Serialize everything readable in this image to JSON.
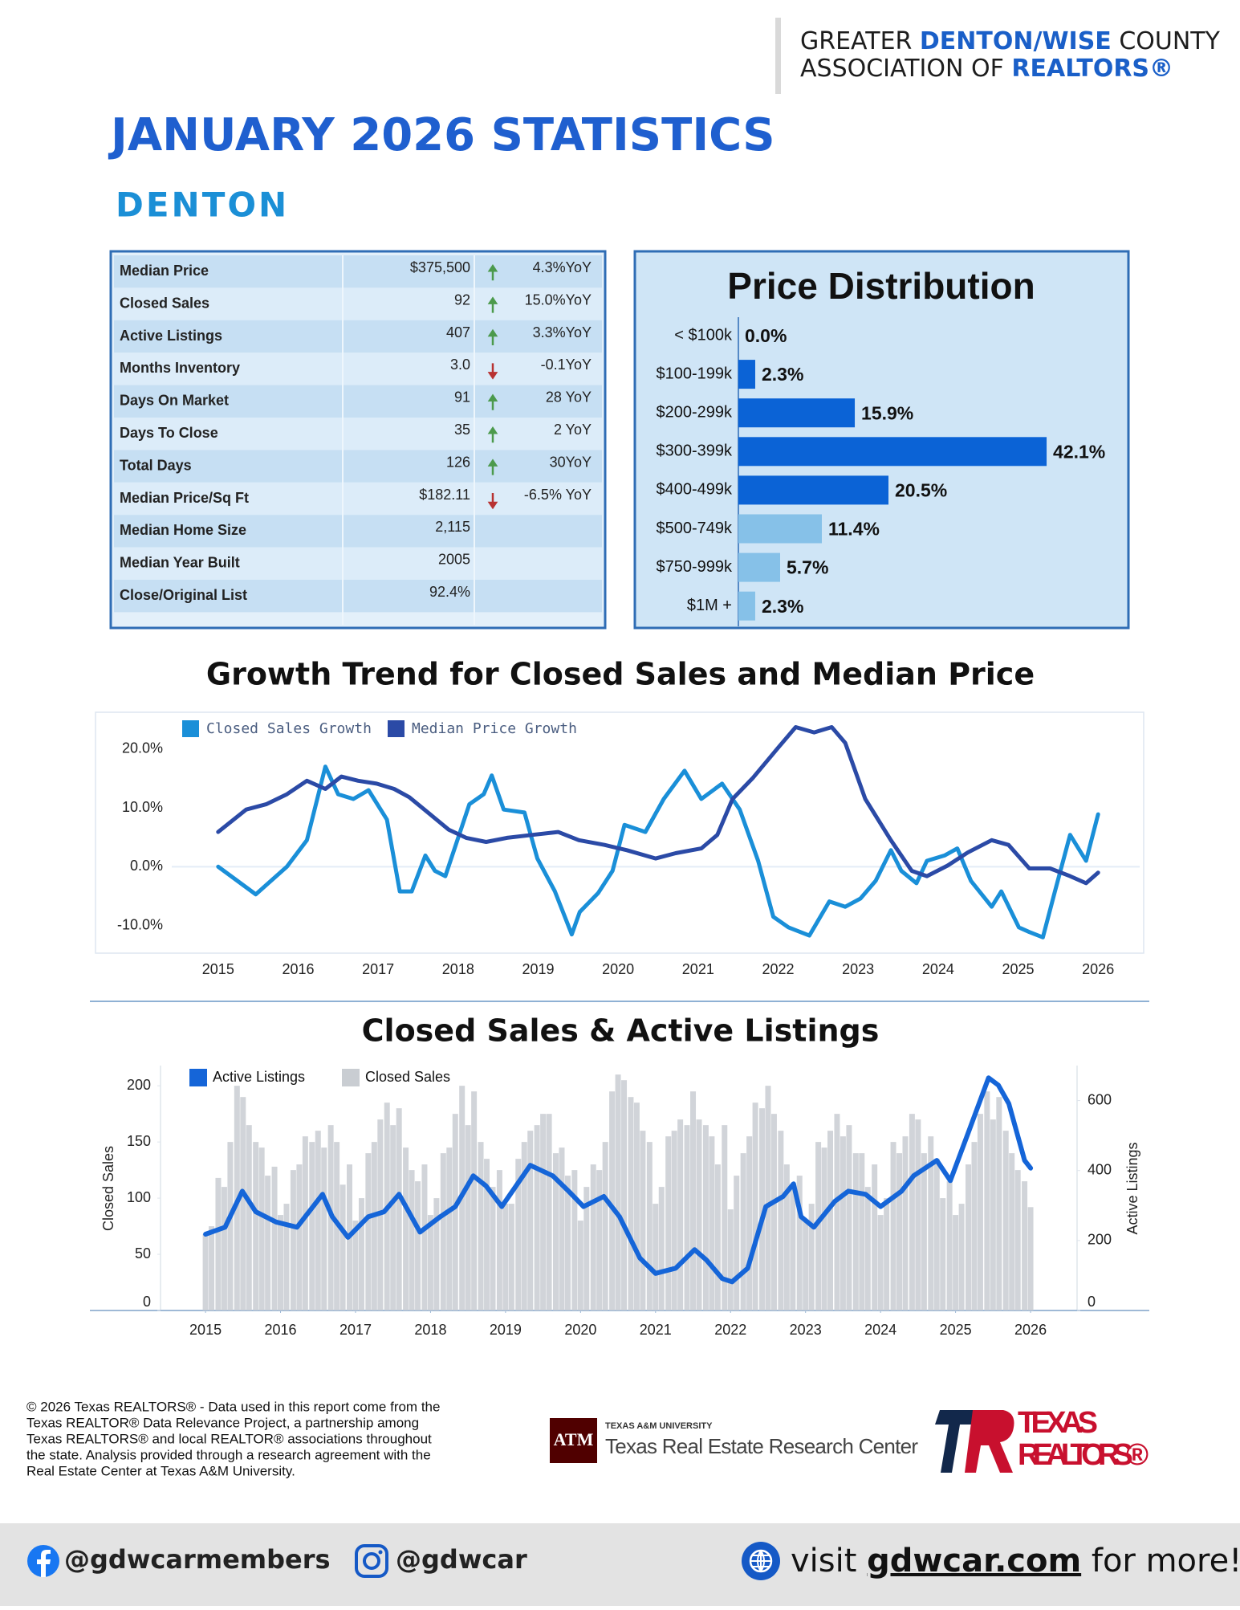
{
  "header": {
    "org_line1": [
      "GREATER ",
      "DENTON/WISE",
      " COUNTY"
    ],
    "org_line2": [
      "ASSOCIATION OF ",
      "REALTORS®"
    ]
  },
  "title": "JANUARY 2026 STATISTICS",
  "subtitle": "DENTON",
  "stats_table": {
    "rows": [
      {
        "label": "Median Price",
        "value": "$375,500",
        "trend": "up",
        "yoy": "4.3%YoY"
      },
      {
        "label": "Closed Sales",
        "value": "92",
        "trend": "up",
        "yoy": "15.0%YoY"
      },
      {
        "label": "Active Listings",
        "value": "407",
        "trend": "up",
        "yoy": "3.3%YoY"
      },
      {
        "label": "Months Inventory",
        "value": "3.0",
        "trend": "down",
        "yoy": "-0.1YoY"
      },
      {
        "label": "Days On Market",
        "value": "91",
        "trend": "up",
        "yoy": "28 YoY"
      },
      {
        "label": "Days To Close",
        "value": "35",
        "trend": "up",
        "yoy": "2 YoY"
      },
      {
        "label": "Total Days",
        "value": "126",
        "trend": "up",
        "yoy": "30YoY"
      },
      {
        "label": "Median Price/Sq Ft",
        "value": "$182.11",
        "trend": "down",
        "yoy": "-6.5% YoY"
      },
      {
        "label": "Median Home Size",
        "value": "2,115"
      },
      {
        "label": "Median Year Built",
        "value": "2005"
      },
      {
        "label": "Close/Original List",
        "value": "92.4%"
      }
    ]
  },
  "chart_data": [
    {
      "type": "hbar",
      "title": "Price Distribution",
      "categories": [
        "< $100k",
        "$100-199k",
        "$200-299k",
        "$300-399k",
        "$400-499k",
        "$500-749k",
        "$750-999k",
        "$1M +"
      ],
      "values": [
        0,
        2.3,
        15.9,
        42.1,
        20.5,
        11.4,
        5.7,
        2.3
      ],
      "value_labels": [
        "0.0%",
        "2.3%",
        "15.9%",
        "42.1%",
        "20.5%",
        "11.4%",
        "5.7%",
        "2.3%"
      ],
      "colors": [
        "#0b63d6",
        "#0b63d6",
        "#0b63d6",
        "#0b63d6",
        "#0b63d6",
        "#86c1e8",
        "#86c1e8",
        "#86c1e8"
      ],
      "xlim": [
        0,
        45
      ]
    },
    {
      "type": "line",
      "title": "Growth Trend for Closed Sales and Median Price",
      "series": [
        {
          "name": "Closed Sales Growth",
          "color": "#1a8fd8",
          "x": [
            2015.0,
            2015.47,
            2015.86,
            2016.11,
            2016.34,
            2016.5,
            2016.69,
            2016.88,
            2017.11,
            2017.27,
            2017.42,
            2017.59,
            2017.71,
            2017.84,
            2018.14,
            2018.32,
            2018.42,
            2018.57,
            2018.83,
            2018.99,
            2019.21,
            2019.42,
            2019.52,
            2019.75,
            2019.93,
            2020.08,
            2020.34,
            2020.57,
            2020.83,
            2021.04,
            2021.3,
            2021.52,
            2021.75,
            2021.94,
            2022.13,
            2022.39,
            2022.64,
            2022.84,
            2023.03,
            2023.22,
            2023.41,
            2023.54,
            2023.73,
            2023.86,
            2024.08,
            2024.24,
            2024.41,
            2024.67,
            2024.79,
            2025.01,
            2025.14,
            2025.31,
            2025.46,
            2025.65,
            2025.85,
            2026.0
          ],
          "values": [
            0,
            -4.7,
            0,
            4.5,
            17,
            12.3,
            11.5,
            13,
            8,
            -4.2,
            -4.2,
            1.9,
            -0.7,
            -1.6,
            10.6,
            12.3,
            15.5,
            9.7,
            9.2,
            1.4,
            -4.2,
            -11.5,
            -7.7,
            -4.5,
            -0.7,
            7.1,
            5.9,
            11.5,
            16.3,
            11.5,
            14.1,
            9.7,
            1,
            -8.5,
            -10.3,
            -11.7,
            -5.9,
            -6.8,
            -5.4,
            -2.4,
            2.8,
            -0.7,
            -2.8,
            1,
            1.9,
            3.1,
            -2.4,
            -6.8,
            -4.2,
            -10.3,
            -11.1,
            -12,
            -4.2,
            5.4,
            1,
            8.9
          ]
        },
        {
          "name": "Median Price Growth",
          "color": "#2b4aa6",
          "x": [
            2015.0,
            2015.35,
            2015.6,
            2015.86,
            2016.11,
            2016.34,
            2016.54,
            2016.75,
            2016.98,
            2017.2,
            2017.39,
            2017.65,
            2017.88,
            2018.1,
            2018.35,
            2018.61,
            2018.93,
            2019.25,
            2019.51,
            2019.83,
            2020.11,
            2020.47,
            2020.72,
            2021.04,
            2021.24,
            2021.43,
            2021.68,
            2022.0,
            2022.22,
            2022.45,
            2022.67,
            2022.84,
            2023.09,
            2023.41,
            2023.67,
            2023.86,
            2024.12,
            2024.37,
            2024.67,
            2024.88,
            2025.14,
            2025.4,
            2025.65,
            2025.85,
            2026.0
          ],
          "values": [
            5.9,
            9.7,
            10.6,
            12.3,
            14.6,
            13.2,
            15.3,
            14.6,
            14.1,
            13.2,
            11.8,
            8.9,
            6.3,
            4.9,
            4.2,
            4.9,
            5.4,
            5.9,
            4.5,
            3.7,
            2.8,
            1.4,
            2.3,
            3.1,
            5.4,
            11.5,
            15,
            20.2,
            23.7,
            22.8,
            23.7,
            21,
            11.5,
            4.5,
            -0.7,
            -1.6,
            0.2,
            2.4,
            4.5,
            3.7,
            -0.3,
            -0.3,
            -1.6,
            -2.8,
            -1
          ]
        }
      ],
      "xlim": [
        2014.42,
        2026.57
      ],
      "xticks": [
        2015,
        2016,
        2017,
        2018,
        2019,
        2020,
        2021,
        2022,
        2023,
        2024,
        2025,
        2026
      ],
      "ylim": [
        -14,
        25
      ],
      "yticks": [
        {
          "value": -10,
          "label": "-10.0%"
        },
        {
          "value": 0,
          "label": "0.0%"
        },
        {
          "value": 10,
          "label": "10.0%"
        },
        {
          "value": 20,
          "label": "20.0%"
        }
      ]
    },
    {
      "type": "bar_line",
      "title": "Closed Sales & Active Listings",
      "ylabel": "Closed Sales",
      "y2label": "Active Listings",
      "series": [
        {
          "name": "Active Listings",
          "color": "#1565d8",
          "type": "line",
          "axis": "y2",
          "x": [
            2015.0,
            2015.26,
            2015.49,
            2015.67,
            2015.94,
            2016.22,
            2016.56,
            2016.69,
            2016.9,
            2017.17,
            2017.38,
            2017.58,
            2017.86,
            2018.13,
            2018.33,
            2018.57,
            2018.74,
            2018.95,
            2019.33,
            2019.63,
            2019.84,
            2020.04,
            2020.31,
            2020.52,
            2020.79,
            2021.0,
            2021.27,
            2021.52,
            2021.68,
            2021.89,
            2022.02,
            2022.23,
            2022.47,
            2022.7,
            2022.84,
            2022.94,
            2023.11,
            2023.39,
            2023.57,
            2023.8,
            2024.0,
            2024.28,
            2024.44,
            2024.75,
            2024.93,
            2025.16,
            2025.44,
            2025.57,
            2025.71,
            2025.92,
            2026.0
          ],
          "values": [
            218,
            238,
            341,
            282,
            253,
            238,
            332,
            268,
            209,
            268,
            282,
            332,
            224,
            268,
            297,
            385,
            356,
            297,
            415,
            385,
            341,
            297,
            326,
            268,
            150,
            106,
            121,
            174,
            144,
            91,
            82,
            121,
            297,
            326,
            362,
            268,
            238,
            312,
            341,
            332,
            297,
            341,
            385,
            429,
            371,
            503,
            665,
            644,
            591,
            429,
            407
          ]
        },
        {
          "name": "Closed Sales",
          "color": "#c9cdd2",
          "type": "bar",
          "x": [
            2015.0,
            2015.08,
            2015.17,
            2015.25,
            2015.33,
            2015.42,
            2015.5,
            2015.58,
            2015.67,
            2015.75,
            2015.83,
            2015.92,
            2016.0,
            2016.08,
            2016.17,
            2016.25,
            2016.33,
            2016.42,
            2016.5,
            2016.58,
            2016.67,
            2016.75,
            2016.83,
            2016.92,
            2017.0,
            2017.08,
            2017.17,
            2017.25,
            2017.33,
            2017.42,
            2017.5,
            2017.58,
            2017.67,
            2017.75,
            2017.83,
            2017.92,
            2018.0,
            2018.08,
            2018.17,
            2018.25,
            2018.33,
            2018.42,
            2018.5,
            2018.58,
            2018.67,
            2018.75,
            2018.83,
            2018.92,
            2019.0,
            2019.08,
            2019.17,
            2019.25,
            2019.33,
            2019.42,
            2019.5,
            2019.58,
            2019.67,
            2019.75,
            2019.83,
            2019.92,
            2020.0,
            2020.08,
            2020.17,
            2020.25,
            2020.33,
            2020.42,
            2020.5,
            2020.58,
            2020.67,
            2020.75,
            2020.83,
            2020.92,
            2021.0,
            2021.08,
            2021.17,
            2021.25,
            2021.33,
            2021.42,
            2021.5,
            2021.58,
            2021.67,
            2021.75,
            2021.83,
            2021.92,
            2022.0,
            2022.08,
            2022.17,
            2022.25,
            2022.33,
            2022.42,
            2022.5,
            2022.58,
            2022.67,
            2022.75,
            2022.83,
            2022.92,
            2023.0,
            2023.08,
            2023.17,
            2023.25,
            2023.33,
            2023.42,
            2023.5,
            2023.58,
            2023.67,
            2023.75,
            2023.83,
            2023.92,
            2024.0,
            2024.08,
            2024.17,
            2024.25,
            2024.33,
            2024.42,
            2024.5,
            2024.58,
            2024.67,
            2024.75,
            2024.83,
            2024.92,
            2025.0,
            2025.08,
            2025.17,
            2025.25,
            2025.33,
            2025.42,
            2025.5,
            2025.58,
            2025.67,
            2025.75,
            2025.83,
            2025.92,
            2026.0
          ],
          "values": [
            68,
            75,
            118,
            110,
            150,
            200,
            190,
            165,
            150,
            145,
            120,
            128,
            85,
            95,
            125,
            130,
            155,
            150,
            160,
            145,
            165,
            150,
            112,
            130,
            80,
            100,
            140,
            150,
            170,
            185,
            165,
            180,
            145,
            125,
            115,
            130,
            85,
            100,
            140,
            145,
            175,
            200,
            165,
            195,
            150,
            135,
            110,
            125,
            95,
            95,
            135,
            150,
            160,
            165,
            175,
            175,
            140,
            145,
            120,
            125,
            80,
            110,
            130,
            125,
            150,
            195,
            210,
            205,
            190,
            185,
            160,
            150,
            95,
            110,
            155,
            160,
            170,
            165,
            195,
            170,
            165,
            155,
            130,
            165,
            90,
            120,
            140,
            155,
            185,
            180,
            200,
            175,
            160,
            130,
            110,
            120,
            80,
            95,
            150,
            145,
            160,
            175,
            155,
            165,
            140,
            140,
            110,
            130,
            85,
            100,
            150,
            140,
            155,
            175,
            170,
            140,
            155,
            135,
            100,
            115,
            85,
            95,
            130,
            150,
            175,
            195,
            170,
            190,
            160,
            140,
            125,
            115,
            92
          ]
        }
      ],
      "xlim": [
        2014.4,
        2026.62
      ],
      "xticks": [
        2015,
        2016,
        2017,
        2018,
        2019,
        2020,
        2021,
        2022,
        2023,
        2024,
        2025,
        2026
      ],
      "ylim": [
        0,
        218
      ],
      "yticks": [
        0,
        50,
        100,
        150,
        200
      ],
      "y2lim": [
        0,
        700
      ],
      "y2ticks": [
        0,
        200,
        400,
        600
      ]
    }
  ],
  "footer": {
    "disclaimer": [
      "© 2026 Texas REALTORS® - Data used in this report come from the",
      "Texas REALTOR® Data Relevance Project, a partnership among",
      "Texas REALTORS® and local REALTOR® associations throughout",
      "the state. Analysis provided through a research agreement with the",
      "Real Estate Center at Texas A&M University."
    ],
    "tamu_mark": "ATM",
    "tamu_small": "TEXAS A&M UNIVERSITY",
    "tamu_name": "Texas Real Estate Research Center",
    "tr_logo": [
      "TEXAS",
      "REALTORS®"
    ]
  },
  "social": {
    "facebook": "@gdwcarmembers",
    "instagram": "@gdwcar",
    "visit": [
      "visit ",
      "gdwcar.com",
      " for more!"
    ]
  }
}
